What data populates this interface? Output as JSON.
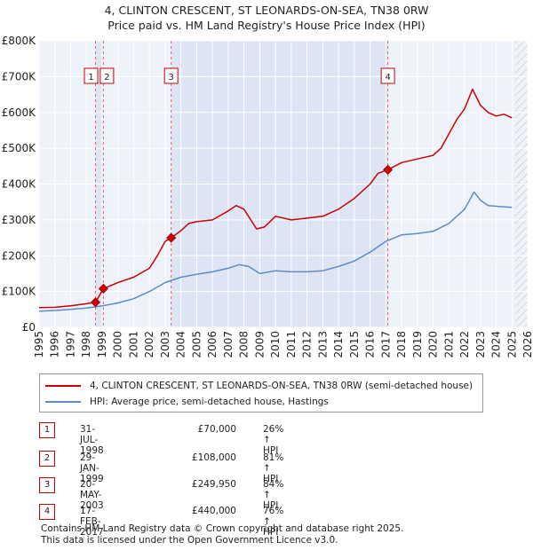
{
  "title": {
    "line1": "4, CLINTON CRESCENT, ST LEONARDS-ON-SEA, TN38 0RW",
    "line2": "Price paid vs. HM Land Registry's House Price Index (HPI)"
  },
  "chart_data": {
    "type": "line",
    "title": "4, CLINTON CRESCENT, ST LEONARDS-ON-SEA, TN38 0RW — Price paid vs. HM Land Registry's House Price Index (HPI)",
    "xlim": [
      1995,
      2026
    ],
    "ylim": [
      0,
      800000
    ],
    "x_ticks": [
      "1995",
      "1996",
      "1997",
      "1998",
      "1999",
      "2000",
      "2001",
      "2002",
      "2003",
      "2004",
      "2005",
      "2006",
      "2007",
      "2008",
      "2009",
      "2010",
      "2011",
      "2012",
      "2013",
      "2014",
      "2015",
      "2016",
      "2017",
      "2018",
      "2019",
      "2020",
      "2021",
      "2022",
      "2023",
      "2024",
      "2025",
      "2026"
    ],
    "y_ticks": [
      {
        "value": 0,
        "label": "£0"
      },
      {
        "value": 100000,
        "label": "£100K"
      },
      {
        "value": 200000,
        "label": "£200K"
      },
      {
        "value": 300000,
        "label": "£300K"
      },
      {
        "value": 400000,
        "label": "£400K"
      },
      {
        "value": 500000,
        "label": "£500K"
      },
      {
        "value": 600000,
        "label": "£600K"
      },
      {
        "value": 700000,
        "label": "£700K"
      },
      {
        "value": 800000,
        "label": "£800K"
      }
    ],
    "grid": true,
    "hatched_from": 2025.2,
    "series": [
      {
        "name": "4, CLINTON CRESCENT, ST LEONARDS-ON-SEA, TN38 0RW (semi-detached house)",
        "color": "#cc0000",
        "points": [
          [
            1995,
            55000
          ],
          [
            1996,
            56000
          ],
          [
            1997,
            60000
          ],
          [
            1998,
            66000
          ],
          [
            1998.58,
            70000
          ],
          [
            1999.08,
            108000
          ],
          [
            2000,
            125000
          ],
          [
            2001,
            140000
          ],
          [
            2002,
            165000
          ],
          [
            2002.5,
            200000
          ],
          [
            2003,
            240000
          ],
          [
            2003.38,
            249950
          ],
          [
            2004,
            270000
          ],
          [
            2004.5,
            290000
          ],
          [
            2005,
            295000
          ],
          [
            2006,
            300000
          ],
          [
            2007,
            325000
          ],
          [
            2007.5,
            340000
          ],
          [
            2008,
            330000
          ],
          [
            2008.8,
            275000
          ],
          [
            2009.3,
            280000
          ],
          [
            2010,
            310000
          ],
          [
            2011,
            300000
          ],
          [
            2012,
            305000
          ],
          [
            2013,
            310000
          ],
          [
            2014,
            330000
          ],
          [
            2015,
            360000
          ],
          [
            2016,
            400000
          ],
          [
            2016.5,
            430000
          ],
          [
            2017.13,
            440000
          ],
          [
            2018,
            460000
          ],
          [
            2019,
            470000
          ],
          [
            2020,
            480000
          ],
          [
            2020.5,
            500000
          ],
          [
            2021,
            540000
          ],
          [
            2021.5,
            580000
          ],
          [
            2022,
            610000
          ],
          [
            2022.5,
            665000
          ],
          [
            2023,
            620000
          ],
          [
            2023.5,
            600000
          ],
          [
            2024,
            590000
          ],
          [
            2024.5,
            595000
          ],
          [
            2025,
            585000
          ]
        ]
      },
      {
        "name": "HPI: Average price, semi-detached house, Hastings",
        "color": "#5b8cc8",
        "points": [
          [
            1995,
            45000
          ],
          [
            1996,
            47000
          ],
          [
            1997,
            50000
          ],
          [
            1998,
            54000
          ],
          [
            1999,
            60000
          ],
          [
            2000,
            68000
          ],
          [
            2001,
            80000
          ],
          [
            2002,
            100000
          ],
          [
            2003,
            125000
          ],
          [
            2004,
            140000
          ],
          [
            2005,
            148000
          ],
          [
            2006,
            155000
          ],
          [
            2007,
            165000
          ],
          [
            2007.7,
            175000
          ],
          [
            2008.3,
            170000
          ],
          [
            2009,
            150000
          ],
          [
            2010,
            158000
          ],
          [
            2011,
            155000
          ],
          [
            2012,
            155000
          ],
          [
            2013,
            158000
          ],
          [
            2014,
            170000
          ],
          [
            2015,
            185000
          ],
          [
            2016,
            210000
          ],
          [
            2017,
            240000
          ],
          [
            2018,
            258000
          ],
          [
            2019,
            262000
          ],
          [
            2020,
            268000
          ],
          [
            2021,
            290000
          ],
          [
            2022,
            330000
          ],
          [
            2022.6,
            378000
          ],
          [
            2023,
            355000
          ],
          [
            2023.5,
            340000
          ],
          [
            2024,
            338000
          ],
          [
            2025,
            335000
          ]
        ]
      }
    ],
    "sales": [
      {
        "num": "1",
        "x": 1998.58,
        "y": 70000
      },
      {
        "num": "2",
        "x": 1999.08,
        "y": 108000
      },
      {
        "num": "3",
        "x": 2003.38,
        "y": 249950
      },
      {
        "num": "4",
        "x": 2017.13,
        "y": 440000
      }
    ],
    "shade_spans": [
      [
        1998.58,
        1999.08
      ],
      [
        2003.38,
        2017.13
      ]
    ]
  },
  "legend": {
    "items": [
      {
        "label": "4, CLINTON CRESCENT, ST LEONARDS-ON-SEA, TN38 0RW (semi-detached house)",
        "color": "#cc0000"
      },
      {
        "label": "HPI: Average price, semi-detached house, Hastings",
        "color": "#5b8cc8"
      }
    ]
  },
  "sales_table": [
    {
      "num": "1",
      "date": "31-JUL-1998",
      "price": "£70,000",
      "hpi": "26% ↑ HPI"
    },
    {
      "num": "2",
      "date": "29-JAN-1999",
      "price": "£108,000",
      "hpi": "81% ↑ HPI"
    },
    {
      "num": "3",
      "date": "20-MAY-2003",
      "price": "£249,950",
      "hpi": "84% ↑ HPI"
    },
    {
      "num": "4",
      "date": "17-FEB-2017",
      "price": "£440,000",
      "hpi": "76% ↑ HPI"
    }
  ],
  "footer": {
    "line1": "Contains HM Land Registry data © Crown copyright and database right 2025.",
    "line2": "This data is licensed under the Open Government Licence v3.0."
  }
}
